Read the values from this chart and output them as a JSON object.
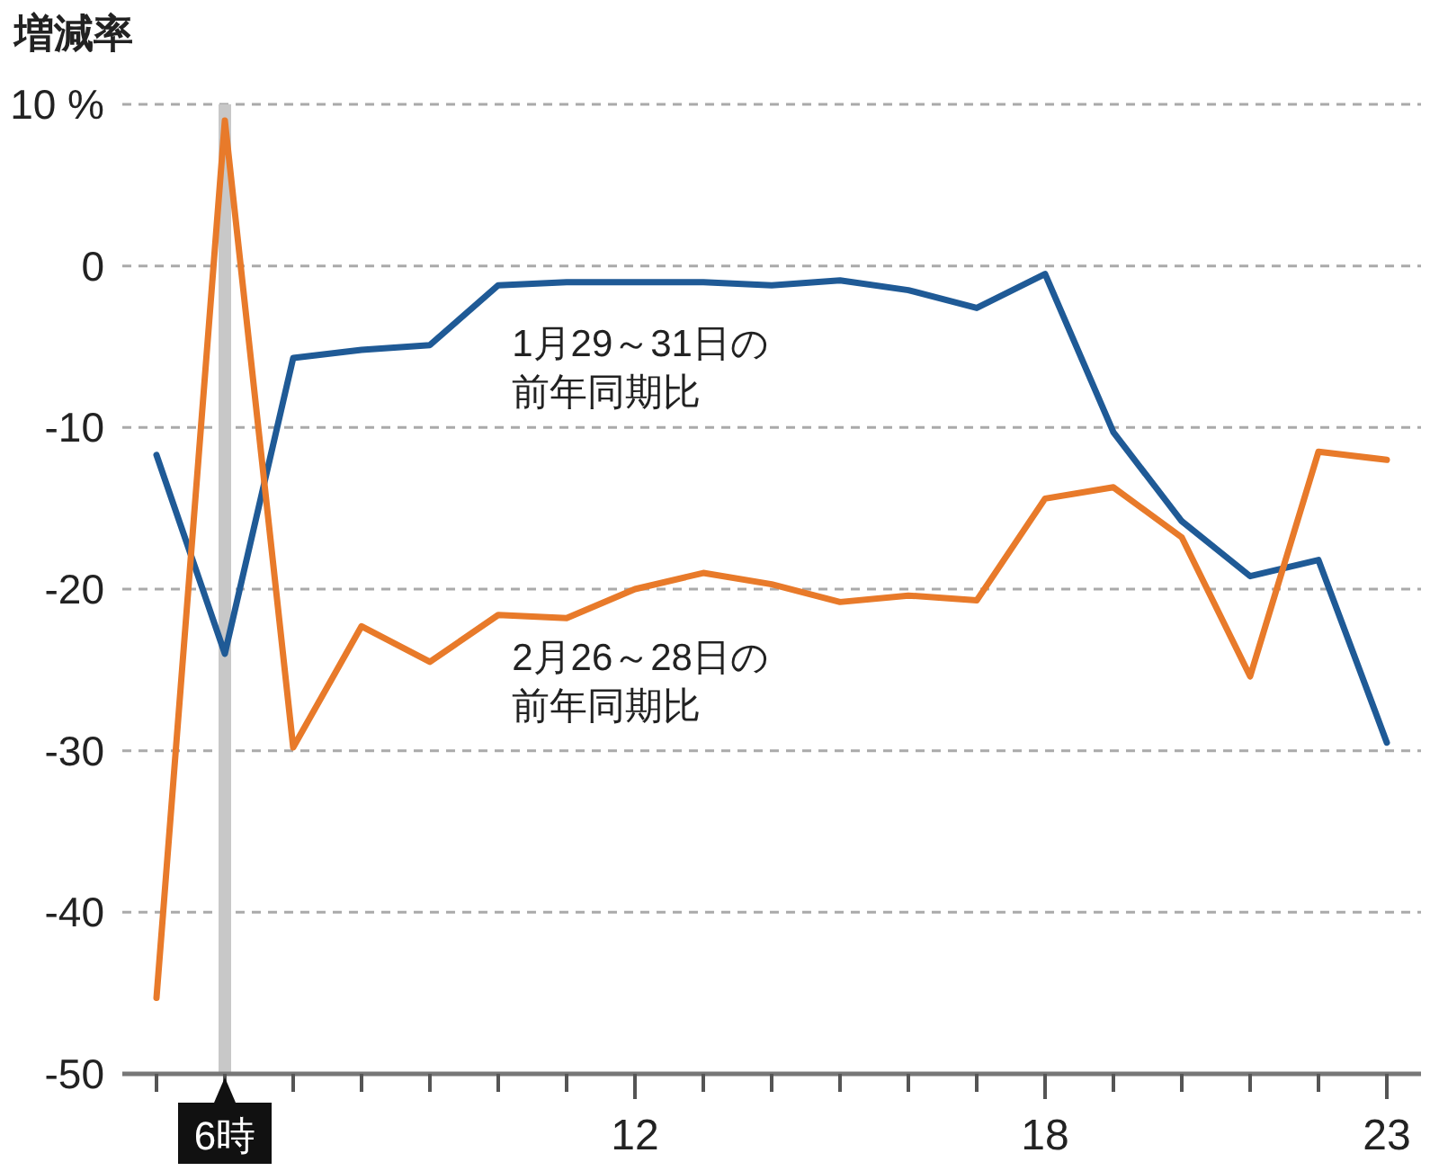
{
  "chart_data": {
    "type": "line",
    "ylabel": "増減率",
    "x": [
      5,
      6,
      7,
      8,
      9,
      10,
      11,
      12,
      13,
      14,
      15,
      16,
      17,
      18,
      19,
      20,
      21,
      22,
      23
    ],
    "series": [
      {
        "name": "1月29～31日の前年同期比",
        "color": "#1f5a96",
        "values": [
          -11.7,
          -24,
          -5.7,
          -5.2,
          -4.9,
          -1.2,
          -1.0,
          -1.0,
          -1.0,
          -1.2,
          -0.9,
          -1.5,
          -2.6,
          -0.5,
          -10.3,
          -15.8,
          -19.2,
          -18.2,
          -29.5
        ]
      },
      {
        "name": "2月26～28日の前年同期比",
        "color": "#e87a2a",
        "values": [
          -45.3,
          9,
          -29.8,
          -22.3,
          -24.5,
          -21.6,
          -21.8,
          -20,
          -19,
          -19.7,
          -20.8,
          -20.4,
          -20.7,
          -14.4,
          -13.7,
          -16.8,
          -25.4,
          -11.5,
          -12
        ]
      }
    ],
    "xlim": [
      4.5,
      23.5
    ],
    "ylim": [
      -50,
      10
    ],
    "xticks": [
      {
        "value": 5,
        "label": null
      },
      {
        "value": 6,
        "label": "6時"
      },
      {
        "value": 7,
        "label": null
      },
      {
        "value": 8,
        "label": null
      },
      {
        "value": 9,
        "label": null
      },
      {
        "value": 10,
        "label": null
      },
      {
        "value": 11,
        "label": null
      },
      12,
      {
        "value": 13,
        "label": null
      },
      {
        "value": 14,
        "label": null
      },
      {
        "value": 15,
        "label": null
      },
      {
        "value": 16,
        "label": null
      },
      {
        "value": 17,
        "label": null
      },
      18,
      {
        "value": 19,
        "label": null
      },
      {
        "value": 20,
        "label": null
      },
      {
        "value": 21,
        "label": null
      },
      {
        "value": 22,
        "label": null
      },
      23
    ],
    "yticks": [
      {
        "value": 10,
        "label": "10 %"
      },
      0,
      -10,
      -20,
      -30,
      -40,
      -50
    ],
    "ref_lines": [
      {
        "axis": "x",
        "value": 6,
        "color": "#c8c8c8"
      }
    ],
    "grid": "y",
    "legend": false,
    "marker": "none",
    "line_style": "solid"
  }
}
